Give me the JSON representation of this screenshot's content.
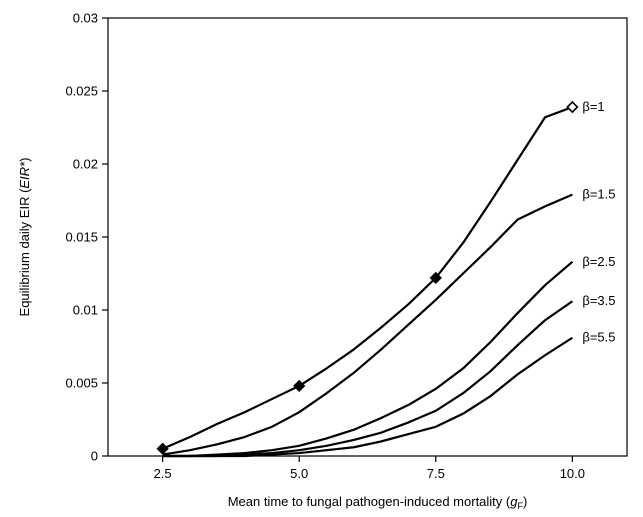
{
  "chart_data": {
    "type": "line",
    "title": "",
    "xlabel": {
      "prefix": "Mean time to fungal pathogen-induced mortality (",
      "italic": "g",
      "sub": "F",
      "suffix": ")"
    },
    "ylabel": {
      "prefix": "Equilibrium daily EIR (",
      "italic": "EIR*",
      "suffix": ")"
    },
    "xlim": [
      1.5,
      11.0
    ],
    "ylim": [
      0,
      0.03
    ],
    "xticks": [
      2.5,
      5.0,
      7.5,
      10.0
    ],
    "xtick_labels": [
      "2.5",
      "5.0",
      "7.5",
      "10.0"
    ],
    "yticks": [
      0,
      0.005,
      0.01,
      0.015,
      0.02,
      0.025,
      0.03
    ],
    "ytick_labels": [
      "0",
      "0.005",
      "0.01",
      "0.015",
      "0.02",
      "0.025",
      "0.03"
    ],
    "grid": false,
    "legend": "inline labels at line ends",
    "series": [
      {
        "name": "β=1",
        "color": "#000000",
        "x": [
          2.5,
          3.0,
          3.5,
          4.0,
          4.5,
          5.0,
          5.5,
          6.0,
          6.5,
          7.0,
          7.5,
          8.0,
          8.5,
          9.0,
          9.5,
          10.0
        ],
        "y": [
          0.0005,
          0.0013,
          0.0022,
          0.003,
          0.0039,
          0.0048,
          0.006,
          0.0073,
          0.0088,
          0.0104,
          0.0122,
          0.0146,
          0.0174,
          0.0203,
          0.0232,
          0.0239
        ],
        "markers": [
          {
            "x": 2.5,
            "y": 0.0005,
            "style": "filled-diamond"
          },
          {
            "x": 5.0,
            "y": 0.0048,
            "style": "filled-diamond"
          },
          {
            "x": 7.5,
            "y": 0.0122,
            "style": "filled-diamond"
          },
          {
            "x": 10.0,
            "y": 0.0239,
            "style": "open-diamond"
          }
        ]
      },
      {
        "name": "β=1.5",
        "color": "#000000",
        "x": [
          2.5,
          3.0,
          3.5,
          4.0,
          4.5,
          5.0,
          5.5,
          6.0,
          6.5,
          7.0,
          7.5,
          8.0,
          8.5,
          9.0,
          9.5,
          10.0
        ],
        "y": [
          0.0001,
          0.0004,
          0.0008,
          0.0013,
          0.002,
          0.003,
          0.0043,
          0.0057,
          0.0073,
          0.009,
          0.0107,
          0.0125,
          0.0143,
          0.0162,
          0.0171,
          0.0179
        ],
        "markers": []
      },
      {
        "name": "β=2.5",
        "color": "#000000",
        "x": [
          2.5,
          3.0,
          3.5,
          4.0,
          4.5,
          5.0,
          5.5,
          6.0,
          6.5,
          7.0,
          7.5,
          8.0,
          8.5,
          9.0,
          9.5,
          10.0
        ],
        "y": [
          0.0,
          0.0,
          0.0001,
          0.0002,
          0.0004,
          0.0007,
          0.0012,
          0.0018,
          0.0026,
          0.0035,
          0.0046,
          0.006,
          0.0078,
          0.0098,
          0.0117,
          0.0133
        ],
        "markers": []
      },
      {
        "name": "β=3.5",
        "color": "#000000",
        "x": [
          2.5,
          3.0,
          3.5,
          4.0,
          4.5,
          5.0,
          5.5,
          6.0,
          6.5,
          7.0,
          7.5,
          8.0,
          8.5,
          9.0,
          9.5,
          10.0
        ],
        "y": [
          0.0,
          0.0,
          0.0,
          0.0001,
          0.0002,
          0.0004,
          0.0007,
          0.0011,
          0.0016,
          0.0023,
          0.0031,
          0.0043,
          0.0058,
          0.0076,
          0.0093,
          0.0106
        ],
        "markers": []
      },
      {
        "name": "β=5.5",
        "color": "#000000",
        "x": [
          2.5,
          3.0,
          3.5,
          4.0,
          4.5,
          5.0,
          5.5,
          6.0,
          6.5,
          7.0,
          7.5,
          8.0,
          8.5,
          9.0,
          9.5,
          10.0
        ],
        "y": [
          0.0,
          0.0,
          0.0,
          0.0,
          0.0001,
          0.0002,
          0.0004,
          0.0006,
          0.001,
          0.0015,
          0.002,
          0.0029,
          0.0041,
          0.0056,
          0.0069,
          0.0081
        ],
        "markers": []
      }
    ]
  }
}
